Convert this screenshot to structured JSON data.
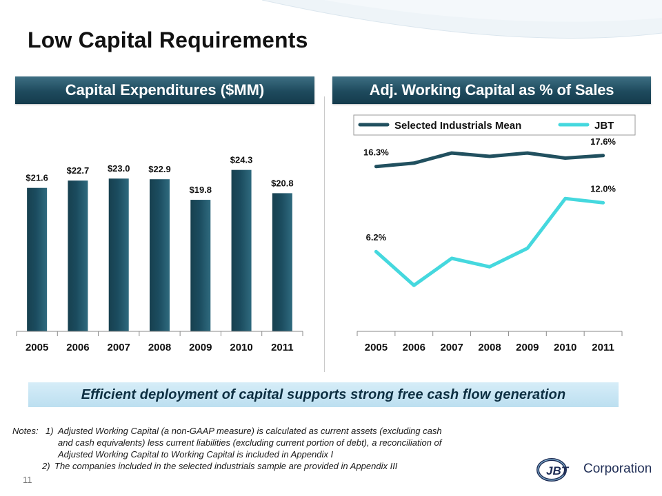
{
  "slide": {
    "title": "Low Capital Requirements",
    "number": "11",
    "colors": {
      "header_dark": "#1e4a5d",
      "bar": "#1b4c5f",
      "line_mean": "#21505f",
      "line_jbt": "#45d8de",
      "callout_bg": "#c7e6f4"
    }
  },
  "left_panel": {
    "header": "Capital Expenditures ($MM)"
  },
  "right_panel": {
    "header": "Adj. Working Capital as % of Sales"
  },
  "chart_data": [
    {
      "type": "bar",
      "title": "Capital Expenditures ($MM)",
      "categories": [
        "2005",
        "2006",
        "2007",
        "2008",
        "2009",
        "2010",
        "2011"
      ],
      "values": [
        21.6,
        22.7,
        23.0,
        22.9,
        19.8,
        24.3,
        20.8
      ],
      "data_labels": [
        "$21.6",
        "$22.7",
        "$23.0",
        "$22.9",
        "$19.8",
        "$24.3",
        "$20.8"
      ],
      "xlabel": "",
      "ylabel": "",
      "ylim": [
        0,
        28
      ],
      "grid": false
    },
    {
      "type": "line",
      "title": "Adj. Working Capital as % of Sales",
      "categories": [
        "2005",
        "2006",
        "2007",
        "2008",
        "2009",
        "2010",
        "2011"
      ],
      "series": [
        {
          "name": "Selected Industrials Mean",
          "values": [
            16.3,
            16.7,
            17.9,
            17.5,
            17.9,
            17.3,
            17.6
          ],
          "color": "#21505f"
        },
        {
          "name": "JBT",
          "values": [
            6.2,
            2.2,
            5.4,
            4.4,
            6.6,
            12.5,
            12.0
          ],
          "color": "#45d8de"
        }
      ],
      "annotations": [
        {
          "series": "Selected Industrials Mean",
          "index": 0,
          "text": "16.3%"
        },
        {
          "series": "Selected Industrials Mean",
          "index": 6,
          "text": "17.6%"
        },
        {
          "series": "JBT",
          "index": 0,
          "text": "6.2%"
        },
        {
          "series": "JBT",
          "index": 6,
          "text": "12.0%"
        }
      ],
      "legend_position": "top",
      "ylim": [
        -4,
        22
      ],
      "grid": false
    }
  ],
  "callout": "Efficient deployment of capital supports strong free cash flow generation",
  "notes": {
    "lead": "Notes:",
    "n1_label": "1)",
    "n1_line1": "Adjusted Working Capital (a non-GAAP measure) is calculated as current assets (excluding cash",
    "n1_line2": "and cash equivalents) less current liabilities (excluding current portion of debt), a reconciliation of",
    "n1_line3": "Adjusted Working Capital to Working Capital is included in Appendix I",
    "n2_label": "2)",
    "n2_text": "The companies included in the selected industrials sample are provided in Appendix III"
  },
  "logo": {
    "mark": "JBT",
    "word": "Corporation"
  }
}
